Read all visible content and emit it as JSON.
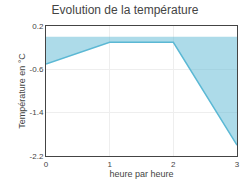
{
  "chart_data": {
    "type": "area",
    "title": "Evolution de la température",
    "xlabel": "heure par heure",
    "ylabel": "Température en °C",
    "x": [
      0,
      1,
      2,
      3
    ],
    "values": [
      -0.5,
      -0.1,
      -0.1,
      -2.0
    ],
    "color": "#5bb8d4",
    "xlim": [
      0,
      3
    ],
    "ylim": [
      -2.2,
      0.2
    ],
    "xticks": [
      0,
      1,
      2,
      3
    ],
    "yticks": [
      0.2,
      -0.6,
      -1.4,
      -2.2
    ],
    "grid": true
  }
}
